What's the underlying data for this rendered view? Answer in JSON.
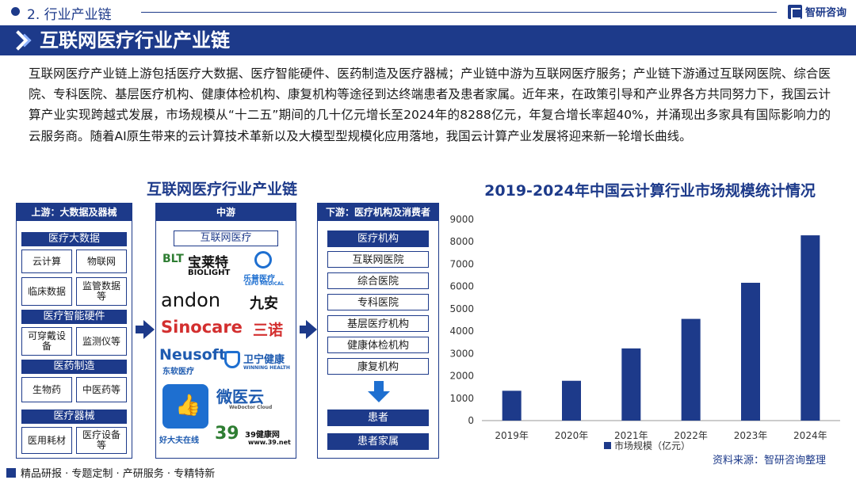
{
  "header": {
    "section": "2. 行业产业链",
    "brand": "智研咨询",
    "title": "互联网医疗行业产业链"
  },
  "intro": "互联网医疗产业链上游包括医疗大数据、医疗智能硬件、医药制造及医疗器械；产业链中游为互联网医疗服务；产业链下游通过互联网医院、综合医院、专科医院、基层医疗机构、健康体检机构、康复机构等途径到达终端患者及患者家属。近年来，在政策引导和产业界各方共同努力下，我国云计算产业实现跨越式发展，市场规模从“十二五”期间的几十亿元增长至2024年的8288亿元，年复合增长率超40%，并涌现出多家具有国际影响力的云服务商。随着AI原生带来的云计算技术革新以及大模型型规模化应用落地，我国云计算产业发展将迎来新一轮增长曲线。",
  "chain": {
    "title": "互联网医疗行业产业链",
    "upstream": {
      "head": "上游：大数据及器械",
      "groups": [
        {
          "name": "医疗大数据",
          "items": [
            "云计算",
            "物联网",
            "临床数据",
            "监管数据等"
          ]
        },
        {
          "name": "医疗智能硬件",
          "items": [
            "可穿戴设备",
            "监测仪等"
          ]
        },
        {
          "name": "医药制造",
          "items": [
            "生物药",
            "中医药等"
          ]
        },
        {
          "name": "医疗器械",
          "items": [
            "医用耗材",
            "医疗设备等"
          ]
        }
      ]
    },
    "midstream": {
      "head": "中游",
      "pill": "互联网医疗",
      "logos": {
        "baolaite": "宝莱特",
        "baolaite_en": "BIOLIGHT",
        "blt": "BLT",
        "lepu": "乐普医疗",
        "lepu_en": "LEPU MEDICAL",
        "andon": "andon",
        "jiuan": "九安",
        "sinocare": "Sinocare",
        "sannuo": "三诺",
        "neusoft": "Neusoft",
        "neusoft_cn": "东软医疗",
        "weining": "卫宁健康",
        "weining_en": "WINNING HEALTH",
        "haodaifu": "好大夫在线",
        "weiyi": "微医云",
        "weiyi_en": "WeDoctor Cloud",
        "jk39": "39健康网",
        "jk39_url": "www.39.net"
      }
    },
    "downstream": {
      "head": "下游：医疗机构及消费者",
      "category": "医疗机构",
      "items": [
        "互联网医院",
        "综合医院",
        "专科医院",
        "基层医疗机构",
        "健康体检机构",
        "康复机构"
      ],
      "end": [
        "患者",
        "患者家属"
      ]
    }
  },
  "chart_data": {
    "type": "bar",
    "title": "2019-2024年中国云计算行业市场规模统计情况",
    "categories": [
      "2019年",
      "2020年",
      "2021年",
      "2022年",
      "2023年",
      "2024年"
    ],
    "series": [
      {
        "name": "市场规模（亿元）",
        "values": [
          1334,
          1781,
          3229,
          4550,
          6165,
          8288
        ]
      }
    ],
    "ylim": [
      0,
      9000
    ],
    "yticks": [
      0,
      1000,
      2000,
      3000,
      4000,
      5000,
      6000,
      7000,
      8000,
      9000
    ],
    "legend_position": "bottom",
    "grid": false,
    "color": "#1d3a8a"
  },
  "source": "资料来源：智研咨询整理",
  "footer": "精品研报 · 专题定制 · 产研服务 · 专精特新"
}
